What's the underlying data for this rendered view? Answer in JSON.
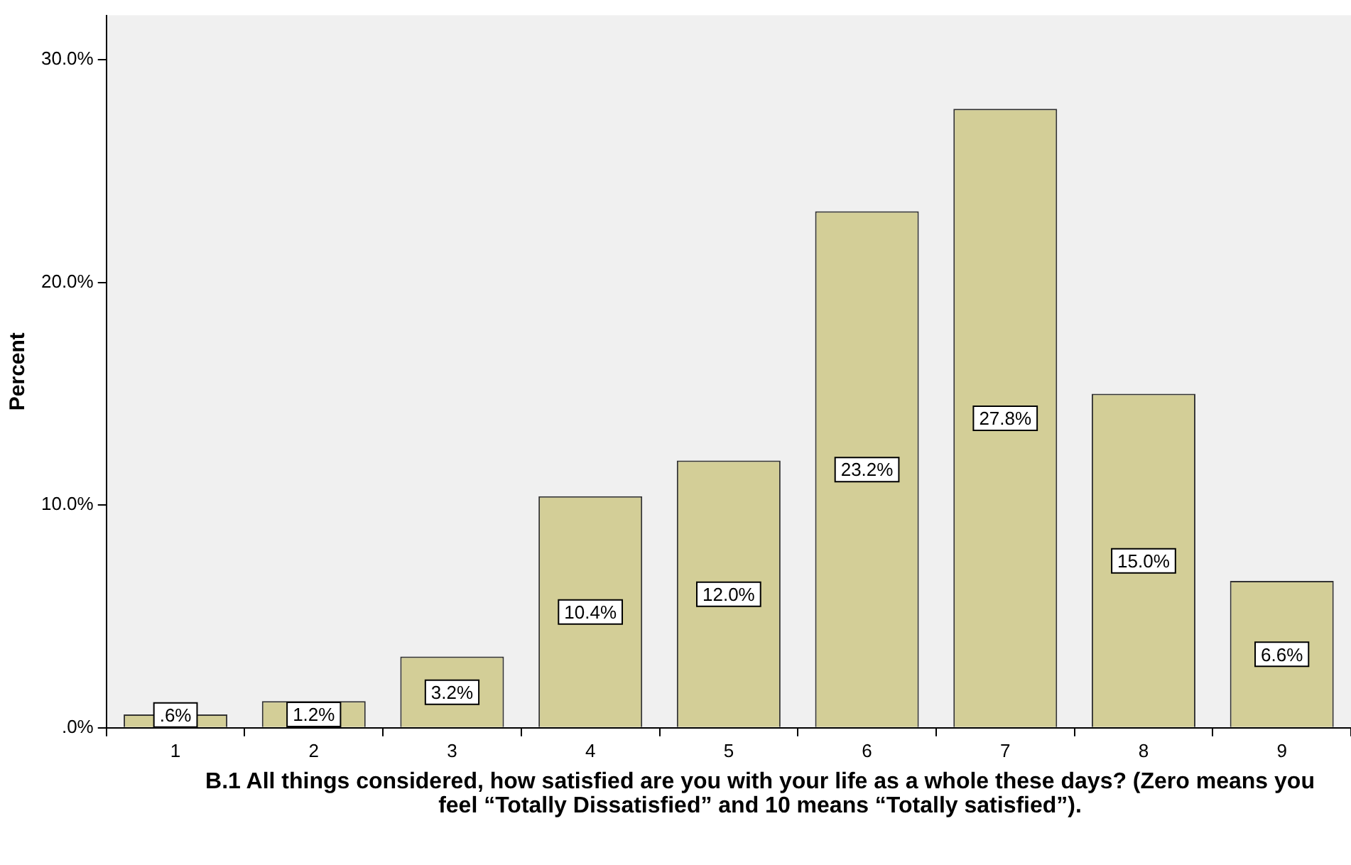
{
  "chart_data": {
    "type": "bar",
    "ylabel": "Percent",
    "xlabel": "B.1 All things considered, how satisfied are you with your life as a whole these days? (Zero means you feel “Totally Dissatisfied” and 10 means “Totally satisfied”).",
    "categories": [
      "1",
      "2",
      "3",
      "4",
      "5",
      "6",
      "7",
      "8",
      "9"
    ],
    "values": [
      0.6,
      1.2,
      3.2,
      10.4,
      12.0,
      23.2,
      27.8,
      15.0,
      6.6
    ],
    "value_labels": [
      ".6%",
      "1.2%",
      "3.2%",
      "10.4%",
      "12.0%",
      "23.2%",
      "27.8%",
      "15.0%",
      "6.6%"
    ],
    "color": "#d3ce97",
    "ylim": [
      0,
      32
    ],
    "yticks": [
      {
        "value": 0,
        "label": ".0%"
      },
      {
        "value": 10,
        "label": "10.0%"
      },
      {
        "value": 20,
        "label": "20.0%"
      },
      {
        "value": 30,
        "label": "30.0%"
      }
    ],
    "grid": false,
    "legend": false
  }
}
